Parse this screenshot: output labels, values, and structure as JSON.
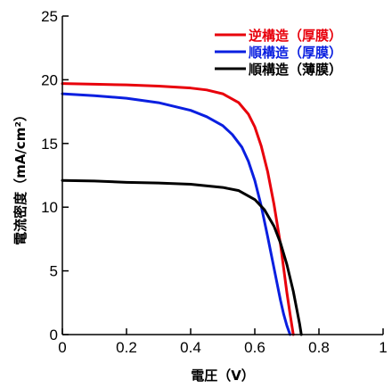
{
  "chart_data": {
    "type": "line",
    "xlabel": "電圧（V）",
    "ylabel": "電流密度（mA/cm²）",
    "xlim": [
      0,
      1
    ],
    "ylim": [
      0,
      25
    ],
    "xticks": [
      0,
      0.2,
      0.4,
      0.6,
      0.8,
      1
    ],
    "yticks": [
      0,
      5,
      10,
      15,
      20,
      25
    ],
    "xtick_labels": [
      "0",
      "0.2",
      "0.4",
      "0.6",
      "0.8",
      "1"
    ],
    "ytick_labels": [
      "0",
      "5",
      "10",
      "15",
      "20",
      "25"
    ],
    "grid": false,
    "legend_position": "top-right",
    "series": [
      {
        "name": "逆構造（厚膜）",
        "color": "#e8000b",
        "x": [
          0,
          0.1,
          0.2,
          0.3,
          0.4,
          0.45,
          0.5,
          0.55,
          0.58,
          0.6,
          0.62,
          0.64,
          0.66,
          0.68,
          0.69,
          0.7,
          0.71,
          0.72
        ],
        "y": [
          19.7,
          19.65,
          19.6,
          19.5,
          19.35,
          19.2,
          18.9,
          18.2,
          17.3,
          16.3,
          14.8,
          12.8,
          10.2,
          7.1,
          5.2,
          3.3,
          1.6,
          0
        ]
      },
      {
        "name": "順構造（厚膜）",
        "color": "#0a1fe0",
        "x": [
          0,
          0.1,
          0.2,
          0.3,
          0.4,
          0.45,
          0.5,
          0.53,
          0.56,
          0.58,
          0.6,
          0.62,
          0.64,
          0.66,
          0.68,
          0.69,
          0.7,
          0.71
        ],
        "y": [
          18.9,
          18.75,
          18.55,
          18.2,
          17.6,
          17.1,
          16.4,
          15.7,
          14.7,
          13.6,
          12.1,
          10.1,
          7.7,
          5.2,
          2.7,
          1.6,
          0.7,
          0
        ]
      },
      {
        "name": "順構造（薄膜）",
        "color": "#000000",
        "x": [
          0,
          0.1,
          0.2,
          0.3,
          0.4,
          0.5,
          0.55,
          0.6,
          0.63,
          0.66,
          0.68,
          0.7,
          0.72,
          0.73,
          0.74,
          0.745
        ],
        "y": [
          12.1,
          12.05,
          11.95,
          11.9,
          11.8,
          11.55,
          11.3,
          10.6,
          9.8,
          8.5,
          7.2,
          5.5,
          3.4,
          2.1,
          0.8,
          0
        ]
      }
    ]
  }
}
